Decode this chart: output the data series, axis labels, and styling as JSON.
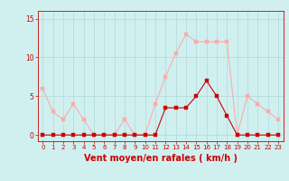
{
  "x": [
    0,
    1,
    2,
    3,
    4,
    5,
    6,
    7,
    8,
    9,
    10,
    11,
    12,
    13,
    14,
    15,
    16,
    17,
    18,
    19,
    20,
    21,
    22,
    23
  ],
  "y_rafales": [
    6,
    3,
    2,
    4,
    2,
    0,
    0,
    0,
    2,
    0,
    0,
    4,
    7.5,
    10.5,
    13,
    12,
    12,
    12,
    12,
    0,
    5,
    4,
    3,
    2
  ],
  "y_moyen": [
    0,
    0,
    0,
    0,
    0,
    0,
    0,
    0,
    0,
    0,
    0,
    0,
    3.5,
    3.5,
    3.5,
    5,
    7,
    5,
    2.5,
    0,
    0,
    0,
    0,
    0
  ],
  "color_rafales": "#ffaaaa",
  "color_moyen": "#cc0000",
  "bg_color": "#d0f0f0",
  "grid_color": "#b0d8d8",
  "axis_color": "#cc0000",
  "tick_color": "#cc0000",
  "xlabel": "Vent moyen/en rafales ( km/h )",
  "xlabel_fontsize": 7,
  "yticks": [
    0,
    5,
    10,
    15
  ],
  "xticks": [
    0,
    1,
    2,
    3,
    4,
    5,
    6,
    7,
    8,
    9,
    10,
    11,
    12,
    13,
    14,
    15,
    16,
    17,
    18,
    19,
    20,
    21,
    22,
    23
  ],
  "ylim": [
    -0.8,
    16
  ],
  "xlim": [
    -0.5,
    23.5
  ],
  "marker_size": 2.5,
  "linewidth": 0.8
}
